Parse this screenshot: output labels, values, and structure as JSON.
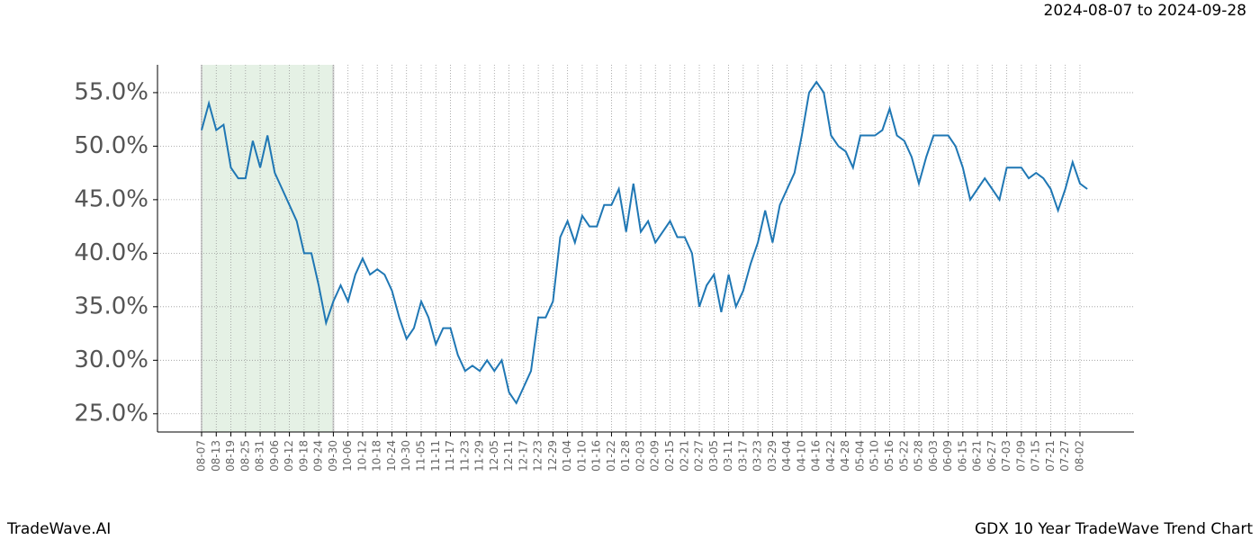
{
  "header": {
    "date_range": "2024-08-07 to 2024-09-28"
  },
  "footer": {
    "brand": "TradeWave.AI",
    "title": "GDX 10 Year TradeWave Trend Chart"
  },
  "chart_data": {
    "type": "line",
    "categories": [
      "08-07",
      null,
      "08-13",
      null,
      "08-19",
      null,
      "08-25",
      null,
      "08-31",
      null,
      "09-06",
      null,
      "09-12",
      null,
      "09-18",
      null,
      "09-24",
      null,
      "09-30",
      null,
      "10-06",
      null,
      "10-12",
      null,
      "10-18",
      null,
      "10-24",
      null,
      "10-30",
      null,
      "11-05",
      null,
      "11-11",
      null,
      "11-17",
      null,
      "11-23",
      null,
      "11-29",
      null,
      "12-05",
      null,
      "12-11",
      null,
      "12-17",
      null,
      "12-23",
      null,
      "12-29",
      null,
      "01-04",
      null,
      "01-10",
      null,
      "01-16",
      null,
      "01-22",
      null,
      "01-28",
      null,
      "02-03",
      null,
      "02-09",
      null,
      "02-15",
      null,
      "02-21",
      null,
      "02-27",
      null,
      "03-05",
      null,
      "03-11",
      null,
      "03-17",
      null,
      "03-23",
      null,
      "03-29",
      null,
      "04-04",
      null,
      "04-10",
      null,
      "04-16",
      null,
      "04-22",
      null,
      "04-28",
      null,
      "05-04",
      null,
      "05-10",
      null,
      "05-16",
      null,
      "05-22",
      null,
      "05-28",
      null,
      "06-03",
      null,
      "06-09",
      null,
      "06-15",
      null,
      "06-21",
      null,
      "06-27",
      null,
      "07-03",
      null,
      "07-09",
      null,
      "07-15",
      null,
      "07-21",
      null,
      "07-27",
      null,
      "08-02",
      null
    ],
    "values": [
      51.5,
      54,
      51.5,
      52,
      48,
      47,
      47,
      50.5,
      48,
      51,
      47.5,
      46,
      44.5,
      43,
      40,
      40,
      37,
      33.5,
      35.5,
      37,
      35.5,
      38,
      39.5,
      38,
      38.5,
      38,
      36.5,
      34,
      32,
      33,
      35.5,
      34,
      31.5,
      33,
      33,
      30.5,
      29,
      29.5,
      29,
      30,
      29,
      30,
      27,
      26,
      27.5,
      29,
      34,
      34,
      35.5,
      41.5,
      43,
      41,
      43.5,
      42.5,
      42.5,
      44.5,
      44.5,
      46,
      42,
      46.5,
      42,
      43,
      41,
      42,
      43,
      41.5,
      41.5,
      40,
      35,
      37,
      38,
      34.5,
      38,
      35,
      36.5,
      39,
      41,
      44,
      41,
      44.5,
      46,
      47.5,
      51,
      55,
      56,
      55,
      51,
      50,
      49.5,
      48,
      51,
      51,
      51,
      51.5,
      53.5,
      51,
      50.5,
      49,
      46.5,
      49,
      51,
      51,
      51,
      50,
      48,
      45,
      46,
      47,
      46,
      45,
      48,
      48,
      48,
      47,
      47.5,
      47,
      46,
      44,
      46,
      48.5,
      46.5,
      46
    ],
    "color": "#1f77b4",
    "shade": {
      "from": "08-07",
      "to": "09-30",
      "color": "#e5f1e5"
    },
    "ylim": [
      23.3,
      57.6
    ],
    "yticks": [
      {
        "value": 25,
        "label": "25.0%"
      },
      {
        "value": 30,
        "label": "30.0%"
      },
      {
        "value": 35,
        "label": "35.0%"
      },
      {
        "value": 40,
        "label": "40.0%"
      },
      {
        "value": 45,
        "label": "45.0%"
      },
      {
        "value": 50,
        "label": "50.0%"
      },
      {
        "value": 55,
        "label": "55.0%"
      }
    ],
    "grid": true
  }
}
